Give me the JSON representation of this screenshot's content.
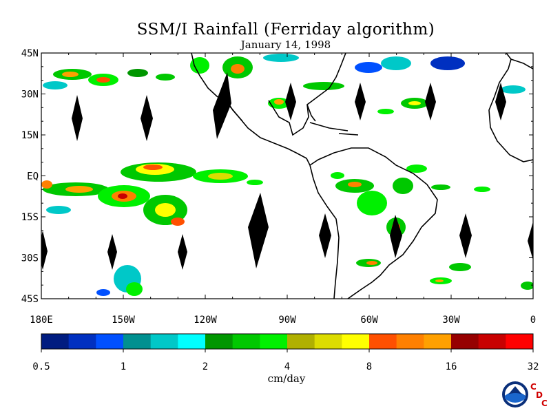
{
  "title": "SSM/I Rainfall (Ferriday algorithm)",
  "subtitle": "January 14, 1998",
  "map": {
    "lat_range": [
      -45,
      45
    ],
    "lon_range": [
      -180,
      0
    ],
    "y_ticks": [
      "45N",
      "30N",
      "15N",
      "EQ",
      "15S",
      "30S",
      "45S"
    ],
    "x_ticks": [
      "180E",
      "150W",
      "120W",
      "90W",
      "60W",
      "30W",
      "0"
    ]
  },
  "colorbar": {
    "unit": "cm/day",
    "labels": [
      "0.5",
      "1",
      "2",
      "4",
      "8",
      "16",
      "32"
    ],
    "colors": [
      "#001c80",
      "#0030c0",
      "#0050ff",
      "#009090",
      "#00c8c8",
      "#00ffff",
      "#009600",
      "#00c800",
      "#00f000",
      "#b0b000",
      "#dcdc00",
      "#ffff00",
      "#ff5000",
      "#ff8000",
      "#ffa000",
      "#960000",
      "#c80000",
      "#ff0000"
    ]
  },
  "logo": {
    "name": "NOAA",
    "letters": [
      "C",
      "D",
      "C"
    ]
  }
}
